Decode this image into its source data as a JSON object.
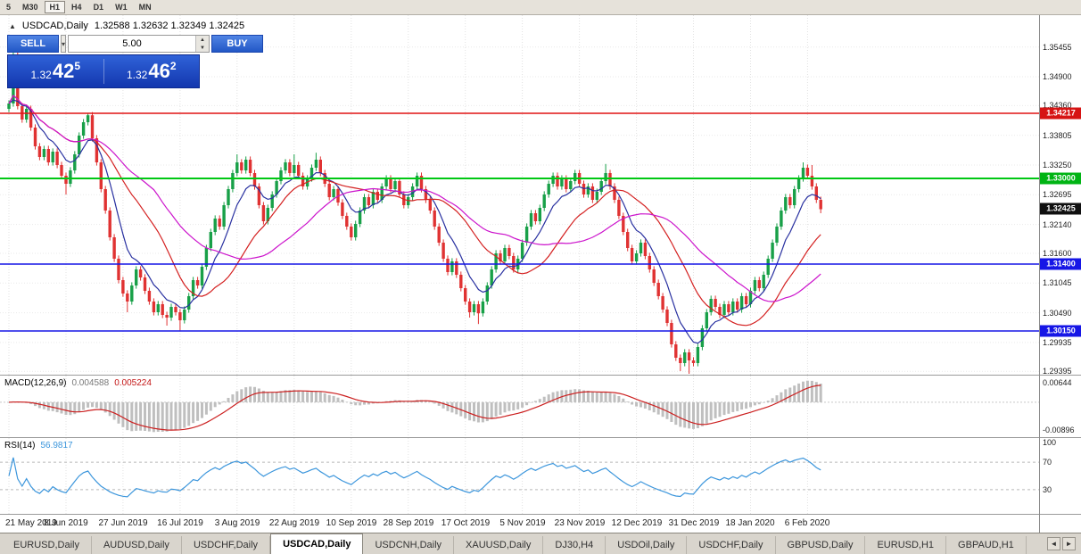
{
  "toolbar": {
    "timeframes": [
      {
        "label": "5",
        "active": false
      },
      {
        "label": "M30",
        "active": false
      },
      {
        "label": "H1",
        "active": true
      },
      {
        "label": "H4",
        "active": false
      },
      {
        "label": "D1",
        "active": false
      },
      {
        "label": "W1",
        "active": false
      },
      {
        "label": "MN",
        "active": false
      }
    ]
  },
  "icons": {
    "collapse": "▲",
    "chevron_down": "▾",
    "spin_up": "▲",
    "spin_down": "▼",
    "tab_left": "◄",
    "tab_right": "►"
  },
  "chart_header": {
    "title": "USDCAD,Daily",
    "ohlc": "1.32588 1.32632 1.32349 1.32425"
  },
  "trade_panel": {
    "sell_label": "SELL",
    "buy_label": "BUY",
    "volume": "5.00",
    "sell_price": {
      "prefix": "1.32",
      "big": "42",
      "sup": "5"
    },
    "buy_price": {
      "prefix": "1.32",
      "big": "46",
      "sup": "2"
    }
  },
  "price_axis": {
    "labels": [
      {
        "text": "1.35455",
        "price": 1.35455
      },
      {
        "text": "1.34900",
        "price": 1.349
      },
      {
        "text": "1.34360",
        "price": 1.3436
      },
      {
        "text": "1.33805",
        "price": 1.33805
      },
      {
        "text": "1.33250",
        "price": 1.3325
      },
      {
        "text": "1.32695",
        "price": 1.32695
      },
      {
        "text": "1.32140",
        "price": 1.3214
      },
      {
        "text": "1.31600",
        "price": 1.316
      },
      {
        "text": "1.31045",
        "price": 1.31045
      },
      {
        "text": "1.30490",
        "price": 1.3049
      },
      {
        "text": "1.29935",
        "price": 1.29935
      },
      {
        "text": "1.29395",
        "price": 1.29395
      }
    ],
    "badges": [
      {
        "text": "1.34217",
        "price": 1.34217,
        "color": "#d61414",
        "name": "resistance-line-badge"
      },
      {
        "text": "1.33000",
        "price": 1.33,
        "color": "#00b414",
        "name": "pivot-line-badge"
      },
      {
        "text": "1.31400",
        "price": 1.314,
        "color": "#1616e6",
        "name": "support1-line-badge"
      },
      {
        "text": "1.30150",
        "price": 1.3015,
        "color": "#1616e6",
        "name": "support2-line-badge"
      },
      {
        "text": "1.32425",
        "price": 1.32425,
        "color": "#101010",
        "name": "current-price-badge"
      }
    ]
  },
  "indicators": {
    "macd": {
      "label": "MACD(12,26,9)",
      "value_macd": "0.004588",
      "value_signal": "0.005224",
      "axis_top": "0.00644",
      "axis_bottom": "-0.00896"
    },
    "rsi": {
      "label": "RSI(14)",
      "value": "56.9817",
      "axis": [
        {
          "text": "100",
          "value": 100
        },
        {
          "text": "70",
          "value": 70
        },
        {
          "text": "30",
          "value": 30
        }
      ]
    }
  },
  "tabs": {
    "items": [
      "EURUSD,Daily",
      "AUDUSD,Daily",
      "USDCHF,Daily",
      "USDCAD,Daily",
      "USDCNH,Daily",
      "XAUUSD,Daily",
      "DJ30,H4",
      "USDOil,Daily",
      "USDCHF,Daily",
      "GBPUSD,Daily",
      "EURUSD,H1",
      "GBPAUD,H1"
    ],
    "active_index": 3
  },
  "chart_data": {
    "type": "candlestick",
    "symbol": "USDCAD",
    "period": "Daily",
    "current_ohlc": [
      1.32588,
      1.32632,
      1.32349,
      1.32425
    ],
    "bid": 1.32425,
    "ask": 1.32462,
    "x_labels": [
      "21 May 2019",
      "8 Jun 2019",
      "27 Jun 2019",
      "16 Jul 2019",
      "3 Aug 2019",
      "22 Aug 2019",
      "10 Sep 2019",
      "28 Sep 2019",
      "17 Oct 2019",
      "5 Nov 2019",
      "23 Nov 2019",
      "12 Dec 2019",
      "31 Dec 2019",
      "18 Jan 2020",
      "6 Feb 2020"
    ],
    "bars_per_label": 13,
    "ylim": [
      1.29333,
      1.3605
    ],
    "open_first": 1.343,
    "closes": [
      1.344,
      1.347,
      1.3435,
      1.341,
      1.343,
      1.3395,
      1.336,
      1.334,
      1.3355,
      1.333,
      1.335,
      1.3325,
      1.3305,
      1.329,
      1.3315,
      1.3345,
      1.338,
      1.3405,
      1.3418,
      1.3375,
      1.333,
      1.328,
      1.324,
      1.319,
      1.315,
      1.311,
      1.3085,
      1.307,
      1.31,
      1.313,
      1.3115,
      1.309,
      1.307,
      1.305,
      1.3065,
      1.3045,
      1.304,
      1.306,
      1.305,
      1.3035,
      1.3055,
      1.308,
      1.311,
      1.31,
      1.3135,
      1.317,
      1.32,
      1.3225,
      1.321,
      1.325,
      1.328,
      1.331,
      1.333,
      1.3315,
      1.3335,
      1.331,
      1.3285,
      1.325,
      1.322,
      1.3245,
      1.327,
      1.3295,
      1.3315,
      1.333,
      1.331,
      1.3325,
      1.3305,
      1.3285,
      1.33,
      1.332,
      1.3335,
      1.331,
      1.329,
      1.3265,
      1.328,
      1.3255,
      1.323,
      1.321,
      1.319,
      1.3215,
      1.324,
      1.3265,
      1.325,
      1.3275,
      1.326,
      1.3285,
      1.33,
      1.328,
      1.3295,
      1.327,
      1.325,
      1.3265,
      1.3285,
      1.3305,
      1.328,
      1.326,
      1.324,
      1.321,
      1.318,
      1.315,
      1.3125,
      1.3145,
      1.312,
      1.3095,
      1.307,
      1.305,
      1.3065,
      1.3048,
      1.307,
      1.31,
      1.313,
      1.316,
      1.3145,
      1.317,
      1.3155,
      1.313,
      1.315,
      1.318,
      1.321,
      1.3235,
      1.322,
      1.3245,
      1.327,
      1.329,
      1.3305,
      1.3285,
      1.33,
      1.328,
      1.3295,
      1.331,
      1.329,
      1.327,
      1.3285,
      1.326,
      1.3275,
      1.3295,
      1.331,
      1.3285,
      1.326,
      1.323,
      1.32,
      1.317,
      1.3145,
      1.316,
      1.318,
      1.3155,
      1.313,
      1.3105,
      1.308,
      1.3055,
      1.303,
      1.299,
      1.2965,
      1.2955,
      1.2975,
      1.296,
      1.2955,
      1.2985,
      1.302,
      1.305,
      1.3075,
      1.306,
      1.3045,
      1.3065,
      1.305,
      1.307,
      1.3055,
      1.308,
      1.3065,
      1.309,
      1.311,
      1.3095,
      1.312,
      1.315,
      1.318,
      1.321,
      1.324,
      1.3265,
      1.325,
      1.328,
      1.33,
      1.332,
      1.3305,
      1.3285,
      1.326,
      1.32425
    ],
    "spike_highs": {
      "1": 1.355,
      "2": 1.3545,
      "18": 1.3422,
      "52": 1.3345,
      "65": 1.3345,
      "70": 1.3348,
      "136": 1.3327,
      "181": 1.333,
      "183": 1.3325
    },
    "spike_lows": {
      "13": 1.327,
      "27": 1.305,
      "36": 1.3025,
      "39": 1.3016,
      "105": 1.304,
      "107": 1.3028,
      "153": 1.294,
      "155": 1.2935,
      "185": 1.3235
    },
    "default_wick": 0.0006,
    "candle_up_color": "#18a048",
    "candle_down_color": "#e03232",
    "hlines": [
      {
        "price": 1.34217,
        "color": "#e01414",
        "width": 1.5,
        "name": "resistance-line"
      },
      {
        "price": 1.33,
        "color": "#00c814",
        "width": 2,
        "name": "pivot-line"
      },
      {
        "price": 1.314,
        "color": "#1616e6",
        "width": 1.5,
        "name": "support-line-1"
      },
      {
        "price": 1.3015,
        "color": "#1616e6",
        "width": 1.5,
        "name": "support-line-2"
      }
    ],
    "moving_averages": [
      {
        "type": "ema",
        "period": 8,
        "color": "#2830a0",
        "name": "ma-fast"
      },
      {
        "type": "sma",
        "period": 20,
        "color": "#d42020",
        "name": "ma-medium"
      },
      {
        "type": "sma",
        "period": 34,
        "color": "#cc14cc",
        "name": "ma-slow"
      }
    ],
    "macd": {
      "fast": 12,
      "slow": 26,
      "signal_period": 9,
      "macd_value": 0.004588,
      "signal_value": 0.005224,
      "bar_color": "#bfbfbf",
      "line_color": "#cc2020"
    },
    "rsi": {
      "period": 14,
      "value": 56.9817,
      "levels": [
        70,
        30
      ],
      "color": "#3c96dc"
    }
  }
}
